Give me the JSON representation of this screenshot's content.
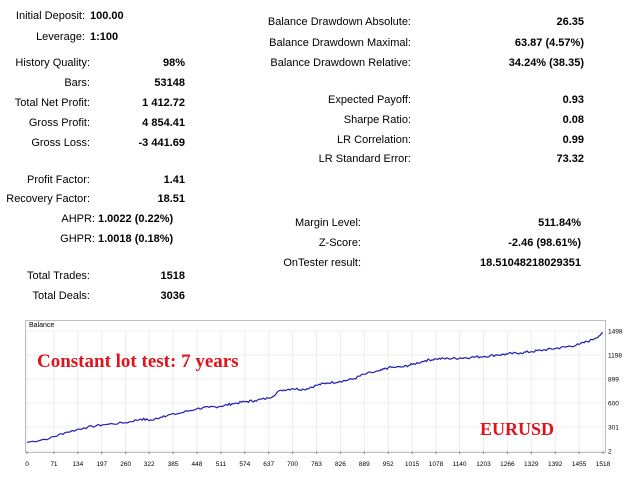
{
  "report": {
    "initial_deposit_label": "Initial Deposit:",
    "initial_deposit_value": "100.00",
    "leverage_label": "Leverage:",
    "leverage_value": "1:100",
    "history_quality_label": "History Quality:",
    "history_quality_value": "98%",
    "bars_label": "Bars:",
    "bars_value": "53148",
    "total_net_profit_label": "Total Net Profit:",
    "total_net_profit_value": "1 412.72",
    "gross_profit_label": "Gross Profit:",
    "gross_profit_value": "4 854.41",
    "gross_loss_label": "Gross Loss:",
    "gross_loss_value": "-3 441.69",
    "profit_factor_label": "Profit Factor:",
    "profit_factor_value": "1.41",
    "recovery_factor_label": "Recovery Factor:",
    "recovery_factor_value": "18.51",
    "ahpr_label": "AHPR:",
    "ahpr_value": "1.0022 (0.22%)",
    "ghpr_label": "GHPR:",
    "ghpr_value": "1.0018 (0.18%)",
    "total_trades_label": "Total Trades:",
    "total_trades_value": "1518",
    "total_deals_label": "Total Deals:",
    "total_deals_value": "3036",
    "bdd_absolute_label": "Balance Drawdown Absolute:",
    "bdd_absolute_value": "26.35",
    "bdd_maximal_label": "Balance Drawdown Maximal:",
    "bdd_maximal_value": "63.87 (4.57%)",
    "bdd_relative_label": "Balance Drawdown Relative:",
    "bdd_relative_value": "34.24% (38.35)",
    "expected_payoff_label": "Expected Payoff:",
    "expected_payoff_value": "0.93",
    "sharpe_ratio_label": "Sharpe Ratio:",
    "sharpe_ratio_value": "0.08",
    "lr_correlation_label": "LR Correlation:",
    "lr_correlation_value": "0.99",
    "lr_std_error_label": "LR Standard Error:",
    "lr_std_error_value": "73.32",
    "margin_level_label": "Margin Level:",
    "margin_level_value": "511.84%",
    "zscore_label": "Z-Score:",
    "zscore_value": "-2.46 (98.61%)",
    "ontester_label": "OnTester result:",
    "ontester_value": "18.51048218029351"
  },
  "chart_data": {
    "type": "line",
    "title": "Balance",
    "annotations": [
      "Constant lot test: 7 years",
      "EURUSD"
    ],
    "x_ticks": [
      "0",
      "71",
      "134",
      "197",
      "260",
      "322",
      "385",
      "448",
      "511",
      "574",
      "637",
      "700",
      "763",
      "826",
      "889",
      "952",
      "1015",
      "1078",
      "1140",
      "1203",
      "1266",
      "1329",
      "1392",
      "1455",
      "1518"
    ],
    "y_ticks": [
      "1498",
      "1198",
      "899",
      "600",
      "301",
      "2"
    ],
    "xlim": [
      0,
      1518
    ],
    "ylim": [
      2,
      1498
    ],
    "grid": true,
    "series": [
      {
        "color": "#1f1fb0",
        "x": [
          0,
          60,
          100,
          150,
          200,
          260,
          300,
          330,
          360,
          400,
          448,
          480,
          511,
          540,
          574,
          600,
          637,
          670,
          700,
          730,
          763,
          790,
          826,
          860,
          889,
          930,
          952,
          990,
          1015,
          1050,
          1078,
          1110,
          1140,
          1170,
          1203,
          1240,
          1266,
          1300,
          1329,
          1360,
          1392,
          1420,
          1455,
          1490,
          1518
        ],
        "values": [
          110,
          160,
          230,
          290,
          330,
          355,
          400,
          385,
          440,
          470,
          530,
          545,
          560,
          590,
          615,
          630,
          660,
          760,
          780,
          770,
          820,
          850,
          870,
          900,
          960,
          1000,
          1040,
          1050,
          1080,
          1130,
          1150,
          1155,
          1160,
          1170,
          1180,
          1200,
          1210,
          1225,
          1240,
          1260,
          1280,
          1300,
          1330,
          1390,
          1470
        ]
      }
    ]
  }
}
